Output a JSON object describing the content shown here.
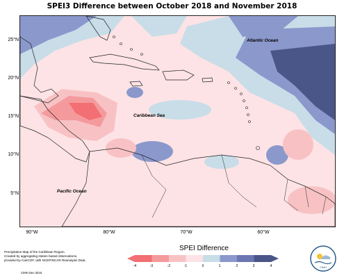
{
  "title": "SPEI3 Difference between October 2018 and November 2018",
  "map": {
    "extent": {
      "lon_min": -93,
      "lon_max": -55,
      "lat_min": 1,
      "lat_max": 28
    },
    "lat_ticks": [
      {
        "value": 25,
        "label": "25°N"
      },
      {
        "value": 20,
        "label": "20°N"
      },
      {
        "value": 15,
        "label": "15°N"
      },
      {
        "value": 10,
        "label": "10°N"
      },
      {
        "value": 5,
        "label": "5°N"
      }
    ],
    "lon_ticks": [
      {
        "value": -90,
        "label": "90°W"
      },
      {
        "value": -80,
        "label": "80°W"
      },
      {
        "value": -70,
        "label": "70°W"
      },
      {
        "value": -60,
        "label": "60°W"
      }
    ],
    "labels": {
      "atlantic": "Atlantic Ocean",
      "caribbean": "Caribbean Sea",
      "pacific": "Pacific Ocean"
    }
  },
  "legend": {
    "title": "SPEI Difference",
    "ticks": [
      "-4",
      "-3",
      "-2",
      "-1",
      "0",
      "1",
      "2",
      "3",
      "4"
    ],
    "colors": [
      "#f26f73",
      "#f49a9d",
      "#f8c2c5",
      "#fde3e5",
      "#c8dde8",
      "#8b98cc",
      "#6b77b3",
      "#4b5688"
    ]
  },
  "footer": {
    "note_line1": "Precipitation Map of the Caribbean Region.",
    "note_line2": "Created by aggregating station based observations,",
    "note_line3": "provided by CariCOF, with NCEP/NCAR Reanalysis Data.",
    "credit": "CIMH Dec-2018",
    "logo_text": "CIMH"
  }
}
